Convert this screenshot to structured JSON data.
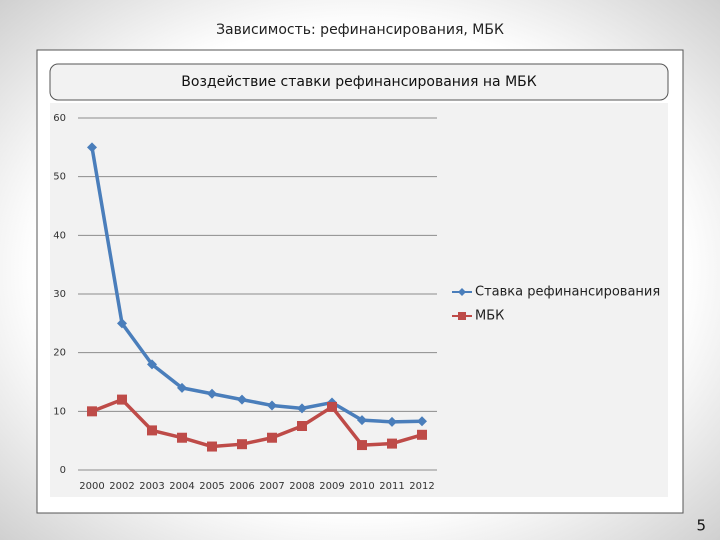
{
  "slide": {
    "title": "Зависимость: рефинансирования, МБК",
    "page_number": "5"
  },
  "chart_data": {
    "type": "line",
    "title": "Воздействие ставки рефинансирования на МБК",
    "categories": [
      "2000",
      "2002",
      "2003",
      "2004",
      "2005",
      "2006",
      "2007",
      "2008",
      "2009",
      "2010",
      "2011",
      "2012"
    ],
    "series": [
      {
        "name": "Ставка рефинансирования",
        "color": "#4a7ebb",
        "marker": "diamond",
        "values": [
          55,
          25,
          18,
          14,
          13,
          12,
          11,
          10.5,
          11.5,
          8.5,
          8.2,
          8.3
        ]
      },
      {
        "name": "МБК",
        "color": "#be4b48",
        "marker": "square",
        "values": [
          10,
          12,
          6.75,
          5.5,
          4,
          4.4,
          5.5,
          7.5,
          10.75,
          4.25,
          4.5,
          6
        ]
      }
    ],
    "ylim": [
      0,
      60
    ],
    "yticks": [
      0,
      10,
      20,
      30,
      40,
      50,
      60
    ],
    "grid": true,
    "legend": "right"
  }
}
